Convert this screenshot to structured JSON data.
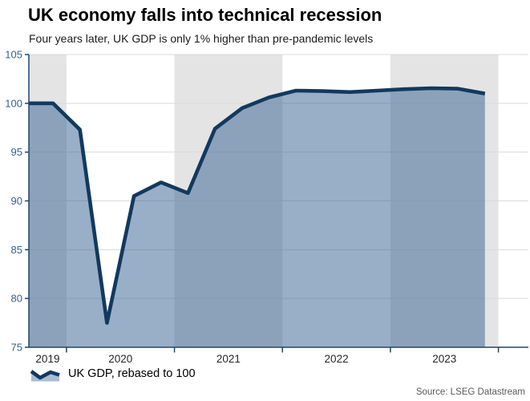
{
  "header": {
    "title": "UK economy falls into technical recession",
    "subtitle": "Four years later, UK GDP is only 1% higher than pre-pandemic levels"
  },
  "legend": {
    "label": "UK GDP, rebased to 100"
  },
  "source": {
    "text": "Source: LSEG Datastream"
  },
  "chart_data": {
    "type": "area",
    "title": "UK economy falls into technical recession",
    "subtitle": "Four years later, UK GDP is only 1% higher than pre-pandemic levels",
    "x": [
      "2019 Q3",
      "2019 Q4",
      "2020 Q1",
      "2020 Q2",
      "2020 Q3",
      "2020 Q4",
      "2021 Q1",
      "2021 Q2",
      "2021 Q3",
      "2021 Q4",
      "2022 Q1",
      "2022 Q2",
      "2022 Q3",
      "2022 Q4",
      "2023 Q1",
      "2023 Q2",
      "2023 Q3",
      "2023 Q4"
    ],
    "series": [
      {
        "name": "UK GDP, rebased to 100",
        "values": [
          100.0,
          100.0,
          97.3,
          77.5,
          90.5,
          91.9,
          90.8,
          97.4,
          99.5,
          100.6,
          101.3,
          101.25,
          101.15,
          101.3,
          101.45,
          101.55,
          101.5,
          101.0
        ]
      }
    ],
    "ylim": [
      75,
      105
    ],
    "y_ticks": [
      105,
      100,
      95,
      90,
      85,
      80,
      75
    ],
    "x_tick_labels": [
      "2019",
      "2020",
      "2021",
      "2022",
      "2023"
    ],
    "grid": "horizontal",
    "legend_position": "bottom-left",
    "shaded_year_bands": [
      "2019",
      "2021",
      "2023"
    ]
  },
  "colors": {
    "line": "#12395f",
    "area_fill": "rgba(51,95,143,0.5)",
    "year_band": "#e4e4e4",
    "gridline": "#d9d9d9",
    "axis": "#1d4670",
    "y_label": "#35618e",
    "x_label": "#262626",
    "source_text": "#595959",
    "legend_icon_fill": "#a9bdd1"
  }
}
